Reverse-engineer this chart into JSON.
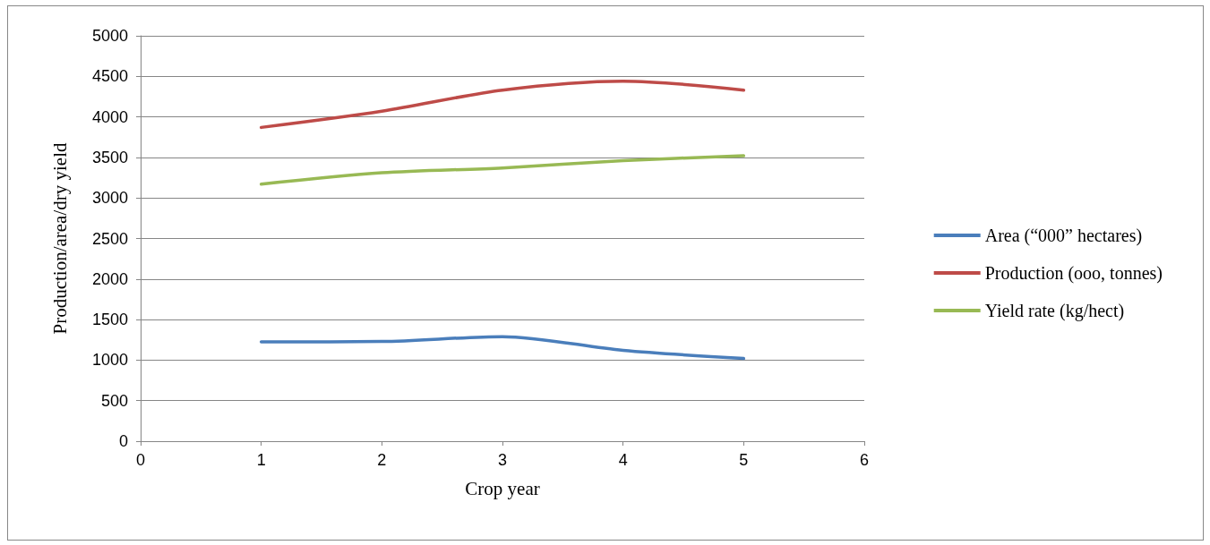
{
  "chart_data": {
    "type": "line",
    "xlabel": "Crop year",
    "ylabel": "Production/area/dry yield",
    "x": [
      1,
      2,
      3,
      4,
      5
    ],
    "series": [
      {
        "name": "Area (“000” hectares)",
        "color": "#4a7ebb",
        "values": [
          1225,
          1230,
          1290,
          1120,
          1020
        ]
      },
      {
        "name": "Production (ooo, tonnes)",
        "color": "#be4b48",
        "values": [
          3870,
          4070,
          4330,
          4440,
          4330
        ]
      },
      {
        "name": "Yield rate (kg/hect)",
        "color": "#98b954",
        "values": [
          3170,
          3310,
          3370,
          3460,
          3520
        ]
      }
    ],
    "xlim": [
      0,
      6
    ],
    "xticks": [
      0,
      1,
      2,
      3,
      4,
      5,
      6
    ],
    "ylim": [
      0,
      5000
    ],
    "yticks": [
      0,
      500,
      1000,
      1500,
      2000,
      2500,
      3000,
      3500,
      4000,
      4500,
      5000
    ],
    "grid": "y",
    "legend": "right",
    "marker": "none",
    "line_style": "solid"
  }
}
